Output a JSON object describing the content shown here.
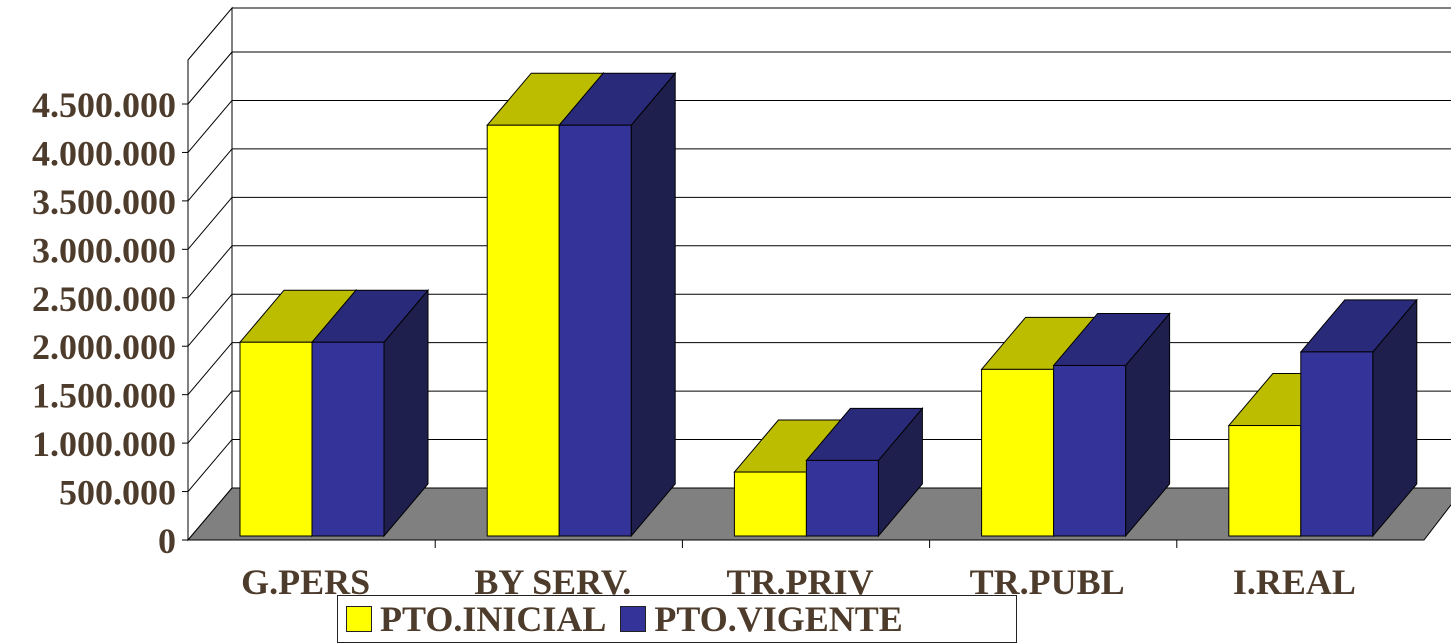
{
  "chart_data": {
    "type": "bar",
    "categories": [
      "G.PERS",
      "BY SERV.",
      "TR.PRIV",
      "TR.PUBL",
      "I.REAL"
    ],
    "series": [
      {
        "name": "PTO.INICIAL",
        "values": [
          2000000,
          4240000,
          660000,
          1720000,
          1140000
        ],
        "color": "#ffff00"
      },
      {
        "name": "PTO.VIGENTE",
        "values": [
          2000000,
          4240000,
          780000,
          1760000,
          1900000
        ],
        "color": "#333399"
      }
    ],
    "ylim": [
      0,
      4500000
    ],
    "yticks": [
      0,
      500000,
      1000000,
      1500000,
      2000000,
      2500000,
      3000000,
      3500000,
      4000000,
      4500000
    ],
    "ytick_labels": [
      "0",
      "500.000",
      "1.000.000",
      "1.500.000",
      "2.000.000",
      "2.500.000",
      "3.000.000",
      "3.500.000",
      "4.000.000",
      "4.500.000"
    ],
    "grid": true,
    "style": "3d-clustered-column",
    "legend_position": "bottom",
    "colors": {
      "series1_top": "#bdbd00",
      "series2_top": "#2a2a7a",
      "series1_side": "#9a9a00",
      "series2_side": "#1f1f4d",
      "floor": "#808080",
      "wall": "#ffffff",
      "text": "#4d3b2b"
    }
  }
}
